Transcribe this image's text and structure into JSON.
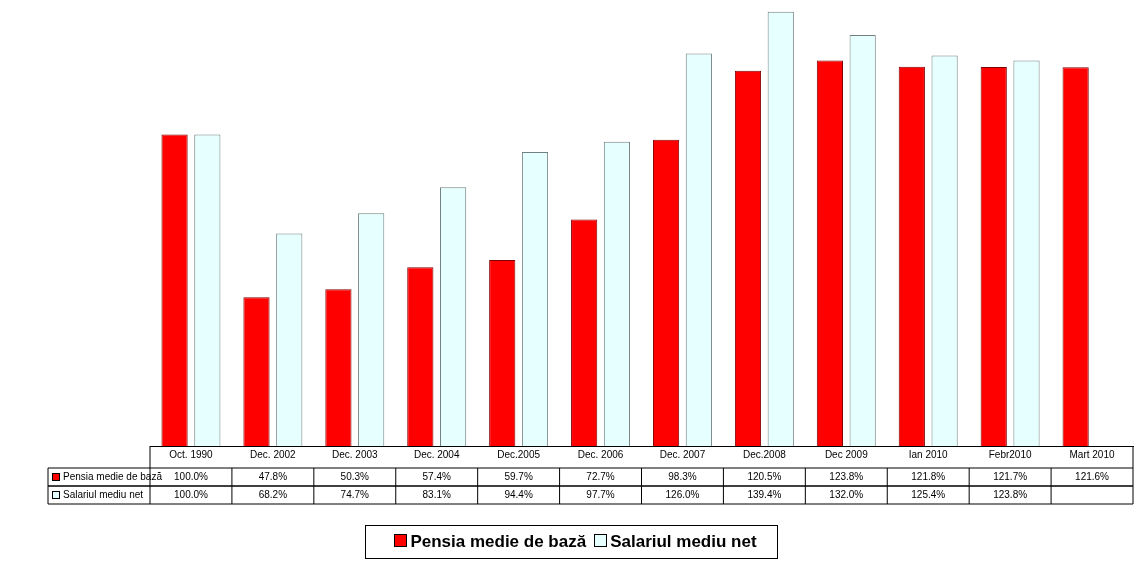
{
  "chart_data": {
    "type": "bar",
    "categories": [
      "Oct. 1990",
      "Dec. 2002",
      "Dec. 2003",
      "Dec. 2004",
      "Dec.2005",
      "Dec. 2006",
      "Dec. 2007",
      "Dec.2008",
      "Dec 2009",
      "Ian 2010",
      "Febr2010",
      "Mart 2010"
    ],
    "series": [
      {
        "name": "Pensia medie de bază",
        "color": "#ff0000",
        "values": [
          100.0,
          47.8,
          50.3,
          57.4,
          59.7,
          72.7,
          98.3,
          120.5,
          123.8,
          121.8,
          121.7,
          121.6
        ],
        "value_labels": [
          "100.0%",
          "47.8%",
          "50.3%",
          "57.4%",
          "59.7%",
          "72.7%",
          "98.3%",
          "120.5%",
          "123.8%",
          "121.8%",
          "121.7%",
          "121.6%"
        ]
      },
      {
        "name": "Salariul mediu net",
        "color": "#e6ffff",
        "values": [
          100.0,
          68.2,
          74.7,
          83.1,
          94.4,
          97.7,
          126.0,
          139.4,
          132.0,
          125.4,
          123.8,
          null
        ],
        "value_labels": [
          "100.0%",
          "68.2%",
          "74.7%",
          "83.1%",
          "94.4%",
          "97.7%",
          "126.0%",
          "139.4%",
          "132.0%",
          "125.4%",
          "123.8%",
          null
        ]
      }
    ],
    "data_labels": true,
    "legend": "bottom",
    "grid": false,
    "tick_labels": "x"
  }
}
